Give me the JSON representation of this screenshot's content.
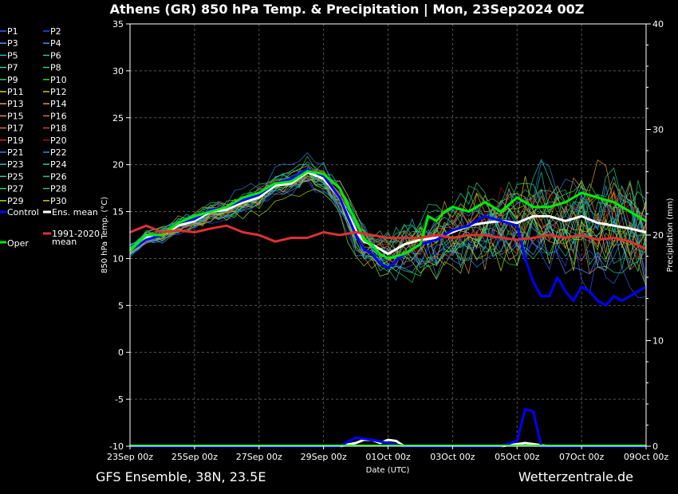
{
  "chart_data": {
    "type": "line",
    "title": "Athens  (GR)  850 hPa Temp. & Precipitation | Mon, 23Sep2024 00Z",
    "xlabel": "Date (UTC)",
    "ylabel": "850 hPa Temp. (°C)",
    "y2label": "Precipitation (mm)",
    "ylim": [
      -10,
      35
    ],
    "y2lim": [
      0,
      40
    ],
    "yticks": [
      -10,
      -5,
      0,
      5,
      10,
      15,
      20,
      25,
      30,
      35
    ],
    "y2ticks": [
      0,
      10,
      20,
      30,
      40
    ],
    "xlim_days": [
      0,
      16
    ],
    "xticks": [
      {
        "label": "23Sep 00z",
        "day": 0
      },
      {
        "label": "25Sep 00z",
        "day": 2
      },
      {
        "label": "27Sep 00z",
        "day": 4
      },
      {
        "label": "29Sep 00z",
        "day": 6
      },
      {
        "label": "01Oct 00z",
        "day": 8
      },
      {
        "label": "03Oct 00z",
        "day": 10
      },
      {
        "label": "05Oct 00z",
        "day": 12
      },
      {
        "label": "07Oct 00z",
        "day": 14
      },
      {
        "label": "09Oct 00z",
        "day": 16
      }
    ],
    "grid": true,
    "legend_position": "left",
    "members_legend": [
      {
        "name": "P1",
        "color": "#3b5bff"
      },
      {
        "name": "P2",
        "color": "#2a4cff"
      },
      {
        "name": "P3",
        "color": "#5a8cff"
      },
      {
        "name": "P4",
        "color": "#2d9cdf"
      },
      {
        "name": "P5",
        "color": "#2bbcd4"
      },
      {
        "name": "P6",
        "color": "#22c4b0"
      },
      {
        "name": "P7",
        "color": "#20d4a0"
      },
      {
        "name": "P8",
        "color": "#1fd486"
      },
      {
        "name": "P9",
        "color": "#1fd45a"
      },
      {
        "name": "P10",
        "color": "#22e028"
      },
      {
        "name": "P11",
        "color": "#d4d21f"
      },
      {
        "name": "P12",
        "color": "#d4c01f"
      },
      {
        "name": "P13",
        "color": "#e0b020"
      },
      {
        "name": "P14",
        "color": "#e0a020"
      },
      {
        "name": "P15",
        "color": "#d49060"
      },
      {
        "name": "P16",
        "color": "#c88040"
      },
      {
        "name": "P17",
        "color": "#d47050"
      },
      {
        "name": "P18",
        "color": "#c85030"
      },
      {
        "name": "P19",
        "color": "#c83020"
      },
      {
        "name": "P20",
        "color": "#a01818"
      },
      {
        "name": "P21",
        "color": "#3080e0"
      },
      {
        "name": "P22",
        "color": "#2090e0"
      },
      {
        "name": "P23",
        "color": "#40b0d0"
      },
      {
        "name": "P24",
        "color": "#30c0c0"
      },
      {
        "name": "P25",
        "color": "#30d0a0"
      },
      {
        "name": "P26",
        "color": "#20c8a0"
      },
      {
        "name": "P27",
        "color": "#30d080"
      },
      {
        "name": "P28",
        "color": "#30c060"
      },
      {
        "name": "P29",
        "color": "#a0e020"
      },
      {
        "name": "P30",
        "color": "#d0c010"
      }
    ],
    "special_legend": [
      {
        "name": "Control",
        "color": "#0000ff"
      },
      {
        "name": "Ens. mean",
        "color": "#ffffff"
      },
      {
        "name": "1991-2020",
        "name2": "mean",
        "color": "#e03030"
      },
      {
        "name": "Oper",
        "color": "#00ee00"
      }
    ],
    "series": [
      {
        "name": "Ens. mean",
        "color": "#ffffff",
        "width": 3,
        "x": [
          0,
          0.5,
          1,
          1.5,
          2,
          2.5,
          3,
          3.5,
          4,
          4.5,
          5,
          5.5,
          6,
          6.5,
          7,
          7.25,
          7.5,
          7.75,
          8,
          8.5,
          9,
          9.5,
          10,
          10.5,
          11,
          11.5,
          12,
          12.5,
          13,
          13.5,
          14,
          14.5,
          15,
          15.5,
          16
        ],
        "y": [
          10.8,
          12.2,
          12.5,
          13.5,
          14,
          15,
          15.2,
          16,
          16.5,
          17.8,
          18,
          19.2,
          18.5,
          16.5,
          13,
          11.8,
          11.5,
          11,
          10.5,
          11.5,
          12,
          12.2,
          12.8,
          13.5,
          13.8,
          14,
          13.8,
          14.5,
          14.5,
          14,
          14.5,
          13.8,
          13.5,
          13.2,
          12.8
        ]
      },
      {
        "name": "Control",
        "color": "#0000ff",
        "width": 3,
        "x": [
          0,
          0.5,
          1,
          1.5,
          2,
          2.5,
          3,
          3.5,
          4,
          4.5,
          5,
          5.5,
          6,
          6.5,
          7,
          7.25,
          7.5,
          7.75,
          8,
          8.5,
          9,
          9.5,
          10,
          10.5,
          11,
          11.5,
          12,
          12.25,
          12.5,
          12.75,
          13,
          13.25,
          13.5,
          13.75,
          14,
          14.25,
          14.5,
          14.75,
          15,
          15.25,
          15.5,
          15.75,
          16
        ],
        "y": [
          10.8,
          12,
          12.5,
          13.8,
          14.2,
          15.2,
          15.5,
          16.2,
          16.8,
          18,
          18.5,
          19.5,
          18.8,
          16.5,
          12.5,
          11,
          10.5,
          9.5,
          9,
          10.5,
          11.5,
          12,
          13,
          13.5,
          14.5,
          14,
          13.5,
          10,
          7.5,
          6,
          6,
          8,
          6.5,
          5.5,
          7,
          6.5,
          5.5,
          5,
          6,
          5.5,
          6,
          6.5,
          7
        ]
      },
      {
        "name": "Oper",
        "color": "#00ee00",
        "width": 3,
        "x": [
          0,
          0.5,
          1,
          1.5,
          2,
          2.5,
          3,
          3.5,
          4,
          4.5,
          5,
          5.5,
          6,
          6.5,
          7,
          7.25,
          7.5,
          7.75,
          8,
          8.5,
          9,
          9.25,
          9.5,
          9.75,
          10,
          10.5,
          11,
          11.5,
          12,
          12.5,
          13,
          13.5,
          14,
          14.5,
          15,
          15.5,
          16
        ],
        "y": [
          10.8,
          12.5,
          12.5,
          13.8,
          14.5,
          15,
          15.5,
          16.5,
          17,
          18,
          18.2,
          19.3,
          19,
          17.5,
          14,
          12,
          11.5,
          10.5,
          10,
          10.5,
          11.5,
          14.5,
          14,
          15,
          15.5,
          15,
          16,
          15,
          16.5,
          15.5,
          15.5,
          16,
          17,
          16.5,
          16,
          15,
          14
        ]
      },
      {
        "name": "1991-2020 mean",
        "color": "#e03030",
        "width": 3,
        "x": [
          0,
          0.5,
          1,
          1.5,
          2,
          2.5,
          3,
          3.5,
          4,
          4.5,
          5,
          5.5,
          6,
          6.5,
          7,
          7.5,
          8,
          8.5,
          9,
          9.5,
          10,
          10.5,
          11,
          11.5,
          12,
          12.5,
          13,
          13.5,
          14,
          14.5,
          15,
          15.5,
          16
        ],
        "y": [
          12.8,
          13.5,
          12.8,
          13,
          12.8,
          13.2,
          13.5,
          12.8,
          12.5,
          11.8,
          12.2,
          12.2,
          12.8,
          12.5,
          12.8,
          12.5,
          12.2,
          12.2,
          12.2,
          12.5,
          12.2,
          12.5,
          12.5,
          12.2,
          12,
          12.2,
          12.5,
          12.2,
          12.5,
          12,
          12.2,
          11.8,
          11
        ]
      }
    ],
    "precipitation_series": [
      {
        "name": "Ens. mean",
        "color": "#ffffff",
        "width": 3,
        "x": [
          0,
          6.5,
          7,
          7.25,
          7.5,
          7.75,
          8,
          8.25,
          8.5,
          11.5,
          12,
          12.25,
          12.5,
          13,
          16
        ],
        "y": [
          0,
          0,
          0.3,
          0.6,
          0.6,
          0.3,
          0.6,
          0.5,
          0,
          0,
          0.2,
          0.3,
          0.2,
          0,
          0
        ]
      },
      {
        "name": "Control",
        "color": "#0000ff",
        "width": 3,
        "x": [
          0,
          6.5,
          7,
          7.5,
          8,
          8.5,
          11.5,
          12,
          12.25,
          12.5,
          12.75,
          13,
          16
        ],
        "y": [
          0,
          0,
          0.8,
          0.6,
          0.3,
          0,
          0,
          0.5,
          3.5,
          3.3,
          0,
          0,
          0
        ]
      }
    ]
  },
  "footer": {
    "left": "GFS Ensemble, 38N, 23.5E",
    "right": "Wetterzentrale.de"
  }
}
